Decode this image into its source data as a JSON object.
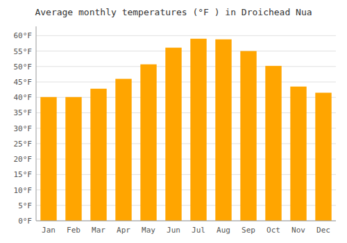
{
  "chart_data": {
    "type": "bar",
    "title": "Average monthly temperatures (°F ) in Droichead Nua",
    "categories": [
      "Jan",
      "Feb",
      "Mar",
      "Apr",
      "May",
      "Jun",
      "Jul",
      "Aug",
      "Sep",
      "Oct",
      "Nov",
      "Dec"
    ],
    "values": [
      40.1,
      40.1,
      42.8,
      46.0,
      50.7,
      56.1,
      59.0,
      58.8,
      55.0,
      50.2,
      43.5,
      41.5
    ],
    "color": "#FFA500",
    "ylim": [
      0,
      63
    ],
    "yticks": [
      {
        "value": 0,
        "label": "0°F"
      },
      {
        "value": 5,
        "label": "5°F"
      },
      {
        "value": 10,
        "label": "10°F"
      },
      {
        "value": 15,
        "label": "15°F"
      },
      {
        "value": 20,
        "label": "20°F"
      },
      {
        "value": 25,
        "label": "25°F"
      },
      {
        "value": 30,
        "label": "30°F"
      },
      {
        "value": 35,
        "label": "35°F"
      },
      {
        "value": 40,
        "label": "40°F"
      },
      {
        "value": 45,
        "label": "45°F"
      },
      {
        "value": 50,
        "label": "50°F"
      },
      {
        "value": 55,
        "label": "55°F"
      },
      {
        "value": 60,
        "label": "60°F"
      }
    ],
    "grid": true
  }
}
